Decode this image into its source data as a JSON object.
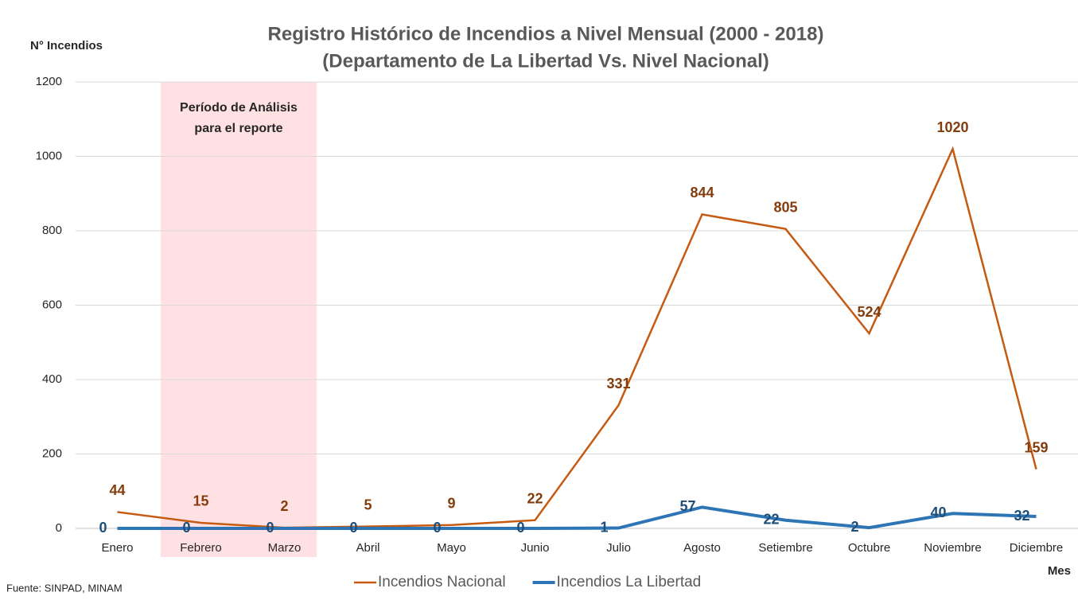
{
  "chart_data": {
    "type": "line",
    "title": "Registro Histórico de Incendios a Nivel Mensual  (2000 - 2018)",
    "subtitle": "(Departamento de  La Libertad Vs. Nivel Nacional)",
    "y_axis_label": "N° Incendios",
    "x_axis_label": "Mes",
    "source": "Fuente: SINPAD, MINAM",
    "annotation": [
      "Período de Análisis",
      "para el reporte"
    ],
    "categories": [
      "Enero",
      "Febrero",
      "Marzo",
      "Abril",
      "Mayo",
      "Junio",
      "Julio",
      "Agosto",
      "Setiembre",
      "Octubre",
      "Noviembre",
      "Diciembre"
    ],
    "series": [
      {
        "name": "Incendios Nacional",
        "color": "#c55a11",
        "label_color": "#843c0c",
        "values": [
          44,
          15,
          2,
          5,
          9,
          22,
          331,
          844,
          805,
          524,
          1020,
          159
        ]
      },
      {
        "name": "Incendios La Libertad",
        "color": "#2e75b6",
        "label_color": "#1f4e79",
        "values": [
          0,
          0,
          0,
          0,
          0,
          0,
          1,
          57,
          22,
          2,
          40,
          32
        ]
      }
    ],
    "ylim": [
      0,
      1200
    ],
    "yticks": [
      0,
      200,
      400,
      600,
      800,
      1000,
      1200
    ],
    "grid": true
  }
}
